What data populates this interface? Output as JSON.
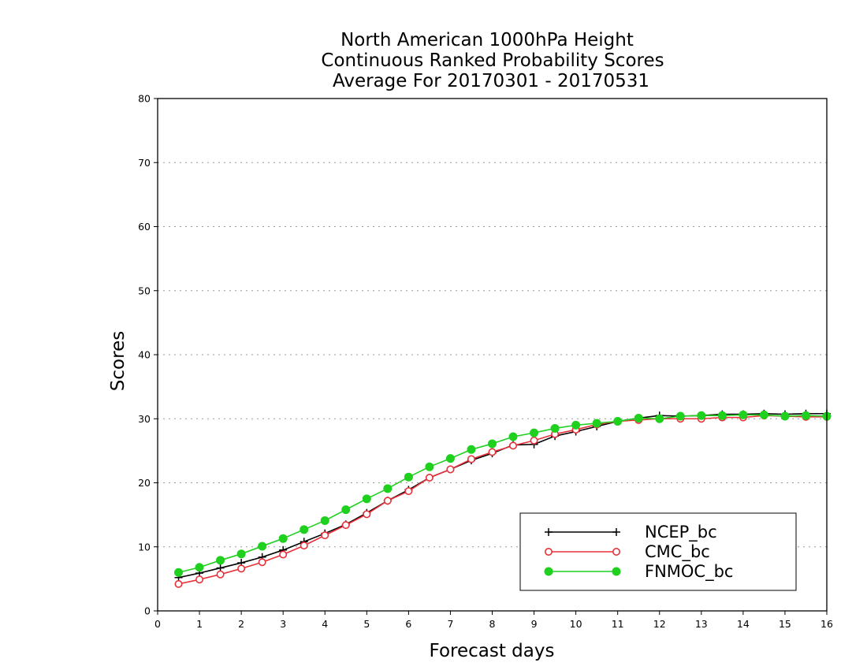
{
  "chart_data": {
    "type": "line",
    "title_lines": [
      "North American 1000hPa Height",
      "Continuous Ranked Probability Scores",
      "Average For 20170301 - 20170531"
    ],
    "xlabel": "Forecast days",
    "ylabel": "Scores",
    "xlim": [
      0,
      16
    ],
    "ylim": [
      0,
      80
    ],
    "xticks": [
      0,
      1,
      2,
      3,
      4,
      5,
      6,
      7,
      8,
      9,
      10,
      11,
      12,
      13,
      14,
      15,
      16
    ],
    "yticks": [
      0,
      10,
      20,
      30,
      40,
      50,
      60,
      70,
      80
    ],
    "grid": "horizontal dotted",
    "legend_position": "bottom-right",
    "x": [
      0.5,
      1,
      1.5,
      2,
      2.5,
      3,
      3.5,
      4,
      4.5,
      5,
      5.5,
      6,
      6.5,
      7,
      7.5,
      8,
      8.5,
      9,
      9.5,
      10,
      10.5,
      11,
      11.5,
      12,
      12.5,
      13,
      13.5,
      14,
      14.5,
      15,
      15.5,
      16
    ],
    "series": [
      {
        "name": "NCEP_bc",
        "color": "#000000",
        "marker": "plus",
        "values": [
          5.2,
          5.9,
          6.7,
          7.5,
          8.4,
          9.5,
          10.8,
          12.1,
          13.5,
          15.3,
          17.2,
          18.9,
          20.8,
          22.1,
          23.5,
          24.6,
          25.9,
          26.0,
          27.3,
          28.0,
          28.8,
          29.6,
          30.1,
          30.5,
          30.4,
          30.5,
          30.7,
          30.7,
          30.8,
          30.7,
          30.8,
          30.8
        ]
      },
      {
        "name": "CMC_bc",
        "color": "#e8303a",
        "marker": "open-circle",
        "values": [
          4.2,
          4.9,
          5.7,
          6.6,
          7.6,
          8.8,
          10.2,
          11.8,
          13.4,
          15.1,
          17.2,
          18.7,
          20.8,
          22.1,
          23.7,
          24.8,
          25.8,
          26.6,
          27.6,
          28.3,
          29.1,
          29.6,
          29.8,
          30.0,
          30.0,
          30.0,
          30.2,
          30.2,
          30.5,
          30.4,
          30.3,
          30.3
        ]
      },
      {
        "name": "FNMOC_bc",
        "color": "#1fd01f",
        "marker": "filled-circle",
        "values": [
          6.0,
          6.8,
          7.9,
          8.9,
          10.1,
          11.3,
          12.7,
          14.1,
          15.8,
          17.5,
          19.1,
          20.9,
          22.5,
          23.8,
          25.2,
          26.1,
          27.2,
          27.8,
          28.5,
          29.0,
          29.3,
          29.6,
          30.1,
          30.0,
          30.4,
          30.5,
          30.5,
          30.6,
          30.6,
          30.4,
          30.5,
          30.4
        ]
      }
    ]
  }
}
